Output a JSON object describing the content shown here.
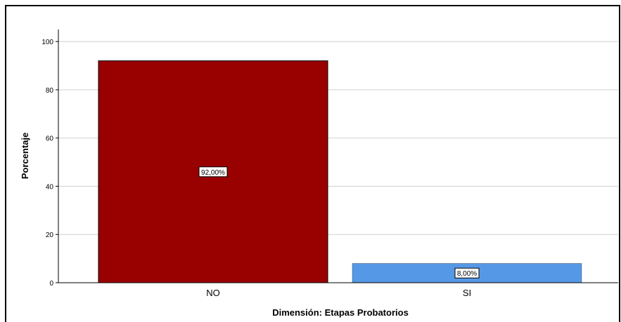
{
  "chart_data": {
    "type": "bar",
    "categories": [
      "NO",
      "SI"
    ],
    "values": [
      92,
      8
    ],
    "data_labels": [
      "92,00%",
      "8,00%"
    ],
    "colors": [
      "#990000",
      "#5599e6"
    ],
    "xlabel": "Dimensión: Etapas Probatorios",
    "ylabel": "Porcentaje",
    "ylim": [
      0,
      105
    ],
    "yticks": [
      0,
      20,
      40,
      60,
      80,
      100
    ],
    "grid": true
  }
}
